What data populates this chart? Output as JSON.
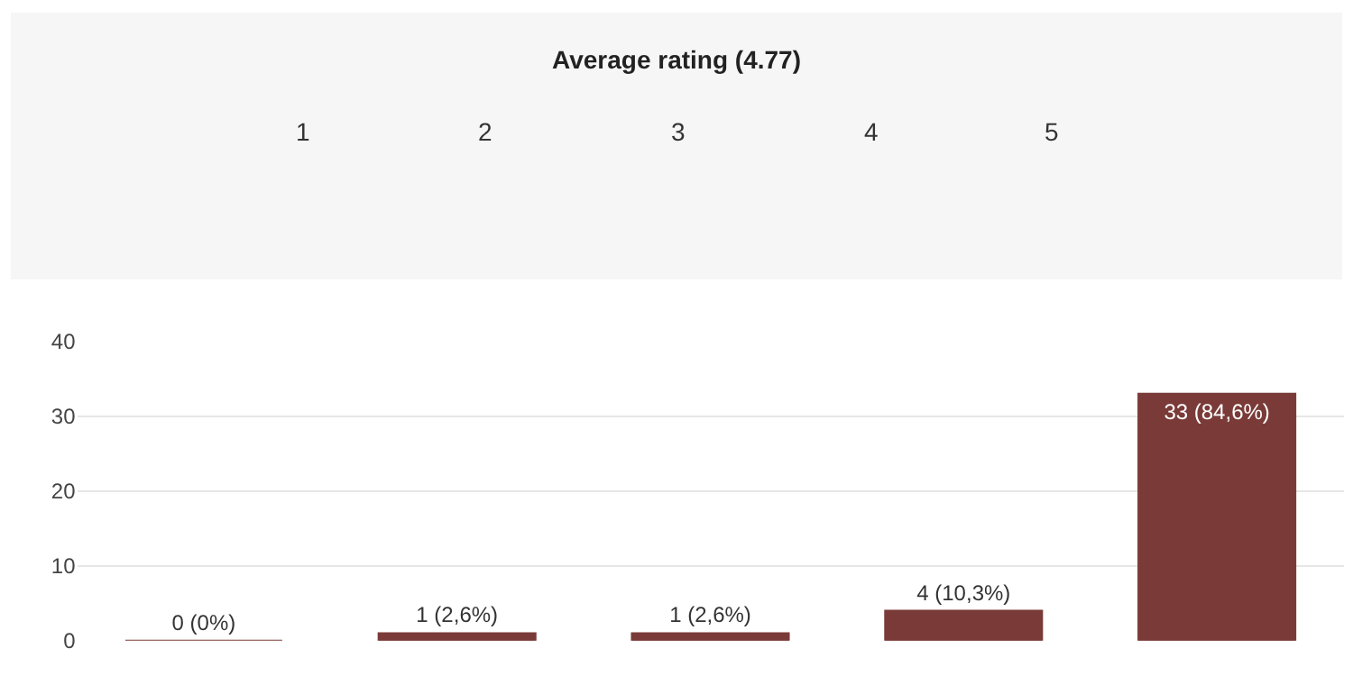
{
  "chart_data": {
    "type": "bar",
    "title": "Average rating (4.77)",
    "annotations": [
      "1",
      "2",
      "3",
      "4",
      "5"
    ],
    "categories": [
      null,
      null,
      null,
      null,
      null
    ],
    "values": [
      0,
      1,
      1,
      4,
      33
    ],
    "color": "#7a3b38",
    "value_labels": [
      "0 (0%)",
      "1 (2,6%)",
      "1 (2,6%)",
      "4 (10,3%)",
      "33 (84,6%)"
    ],
    "ylim": [
      0,
      40
    ],
    "yticks": [
      0,
      10,
      20,
      30,
      40
    ],
    "grid": "y",
    "legend": false
  }
}
